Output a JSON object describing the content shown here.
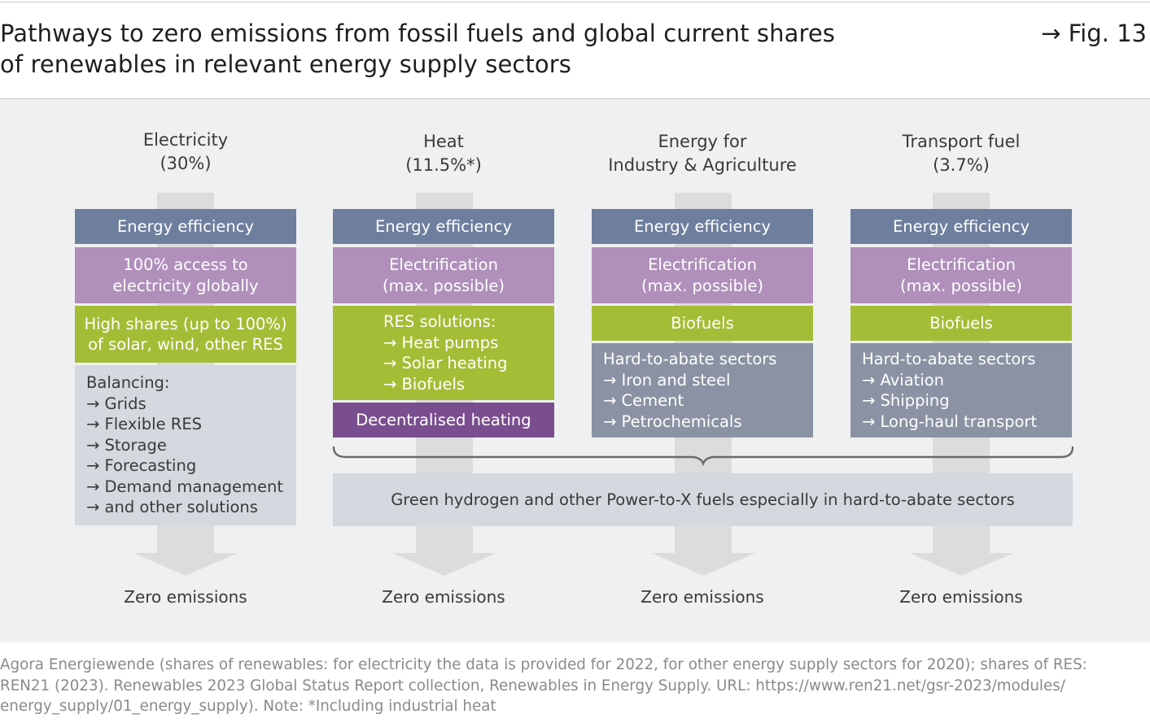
{
  "title": "Pathways to zero emissions from fossil fuels and global current shares of renewables in relevant energy supply sectors",
  "title_line1": "Pathways to zero emissions from fossil fuels and global current shares",
  "title_line2": "of renewables in relevant energy supply sectors",
  "fig_label": "→ Fig. 13",
  "columns": [
    {
      "head1": "Electricity",
      "head2": "(30%)",
      "efficiency": "Energy efficiency",
      "elec1": "100% access to",
      "elec2": "electricity globally",
      "green1": "High shares (up to 100%)",
      "green2": "of solar, wind, other RES",
      "balancing": [
        "Balancing:",
        "→ Grids",
        "→ Flexible RES",
        "→ Storage",
        "→ Forecasting",
        "→ Demand management",
        "→ and other solutions"
      ],
      "zero": "Zero emissions"
    },
    {
      "head1": "Heat",
      "head2": "(11.5%*)",
      "efficiency": "Energy efficiency",
      "elec1": "Electrification",
      "elec2": "(max. possible)",
      "res": [
        "RES solutions:",
        "→ Heat pumps",
        "→ Solar heating",
        "→ Biofuels"
      ],
      "decentral": "Decentralised heating",
      "zero": "Zero emissions"
    },
    {
      "head1": "Energy for",
      "head2": "Industry & Agriculture",
      "efficiency": "Energy efficiency",
      "elec1": "Electrification",
      "elec2": "(max. possible)",
      "biofuels": "Biofuels",
      "hard": [
        "Hard-to-abate sectors",
        "→ Iron and steel",
        "→ Cement",
        "→ Petrochemicals"
      ],
      "zero": "Zero emissions"
    },
    {
      "head1": "Transport fuel",
      "head2": "(3.7%)",
      "efficiency": "Energy efficiency",
      "elec1": "Electrification",
      "elec2": "(max. possible)",
      "biofuels": "Biofuels",
      "hard": [
        "Hard-to-abate sectors",
        "→ Aviation",
        "→ Shipping",
        "→ Long-haul transport"
      ],
      "zero": "Zero emissions"
    }
  ],
  "hydrogen": "Green hydrogen and other Power-to-X fuels especially in hard-to-abate sectors",
  "footer": [
    "Agora Energiewende (shares of renewables: for electricity the data is provided for 2022, for other energy supply sectors for 2020); shares of RES:",
    "REN21 (2023). Renewables 2023 Global Status Report collection, Renewables in Energy Supply. URL: https://www.ren21.net/gsr-2023/modules/",
    "energy_supply/01_energy_supply). Note: *Including industrial heat"
  ],
  "colors": {
    "efficiency": "#6e7f9e",
    "electrification": "#b08fbb",
    "renewables": "#a4bd36",
    "decentralised": "#7a4e8e",
    "hard_to_abate": "#8a92a3",
    "light": "#d3d9de",
    "arrow": "#dcdcdc"
  }
}
